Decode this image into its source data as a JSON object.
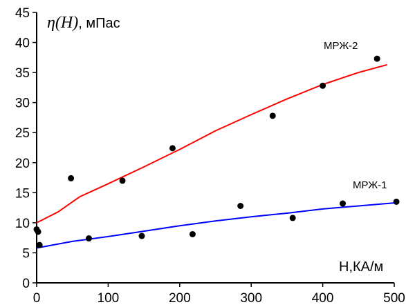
{
  "chart_data": {
    "type": "scatter",
    "title": "",
    "ylabel": {
      "symbol": "η(H)",
      "unit": ", мПас"
    },
    "xlabel": "H,КА/м",
    "xlim": [
      0,
      500
    ],
    "ylim": [
      0,
      45
    ],
    "x_ticks": [
      0,
      100,
      200,
      300,
      400,
      500
    ],
    "y_ticks": [
      0,
      5,
      10,
      15,
      20,
      25,
      30,
      35,
      40,
      45
    ],
    "grid": false,
    "series": [
      {
        "name": "МРЖ-2",
        "line_color": "#ff0000",
        "points": [
          [
            0,
            8.9
          ],
          [
            48,
            17.4
          ],
          [
            120,
            17.0
          ],
          [
            190,
            22.4
          ],
          [
            330,
            27.8
          ],
          [
            400,
            32.8
          ],
          [
            476,
            37.3
          ]
        ],
        "fit": [
          [
            0,
            10.0
          ],
          [
            30,
            11.8
          ],
          [
            60,
            14.3
          ],
          [
            100,
            16.5
          ],
          [
            150,
            19.3
          ],
          [
            200,
            22.2
          ],
          [
            250,
            25.3
          ],
          [
            300,
            28.0
          ],
          [
            350,
            30.6
          ],
          [
            400,
            33.0
          ],
          [
            450,
            35.0
          ],
          [
            490,
            36.3
          ]
        ]
      },
      {
        "name": "МРЖ-1",
        "line_color": "#0000ff",
        "points": [
          [
            2,
            8.5
          ],
          [
            4,
            6.3
          ],
          [
            73,
            7.4
          ],
          [
            147,
            7.8
          ],
          [
            218,
            8.1
          ],
          [
            285,
            12.8
          ],
          [
            358,
            10.8
          ],
          [
            428,
            13.2
          ],
          [
            503,
            13.5
          ]
        ],
        "fit": [
          [
            0,
            5.8
          ],
          [
            50,
            6.9
          ],
          [
            100,
            7.7
          ],
          [
            150,
            8.6
          ],
          [
            200,
            9.5
          ],
          [
            250,
            10.3
          ],
          [
            300,
            11.0
          ],
          [
            350,
            11.6
          ],
          [
            400,
            12.3
          ],
          [
            450,
            12.8
          ],
          [
            500,
            13.3
          ]
        ]
      }
    ]
  }
}
